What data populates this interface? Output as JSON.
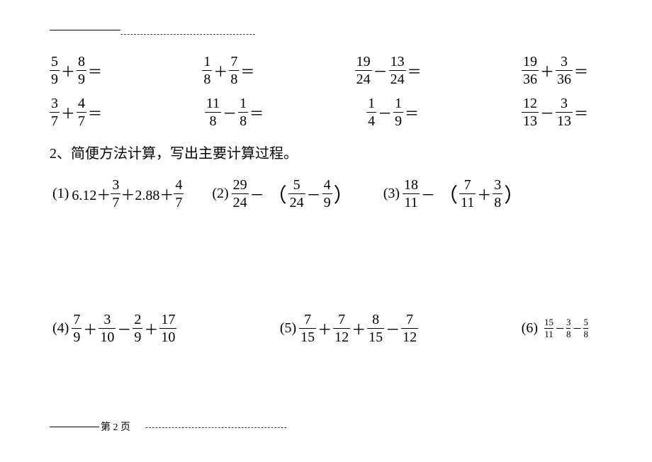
{
  "rules": {
    "dash_pattern": "-------------------------------------------",
    "bottom_label": "第 2 页"
  },
  "row1": [
    {
      "a_n": "5",
      "a_d": "9",
      "op": "＋",
      "b_n": "8",
      "b_d": "9"
    },
    {
      "a_n": "1",
      "a_d": "8",
      "op": "＋",
      "b_n": "7",
      "b_d": "8"
    },
    {
      "a_n": "19",
      "a_d": "24",
      "op": "－",
      "b_n": "13",
      "b_d": "24"
    },
    {
      "a_n": "19",
      "a_d": "36",
      "op": "＋",
      "b_n": "3",
      "b_d": "36"
    }
  ],
  "row2": [
    {
      "a_n": "3",
      "a_d": "7",
      "op": "＋",
      "b_n": "4",
      "b_d": "7"
    },
    {
      "a_n": "11",
      "a_d": "8",
      "op": "－",
      "b_n": "1",
      "b_d": "8"
    },
    {
      "a_n": "1",
      "a_d": "4",
      "op": "－",
      "b_n": "1",
      "b_d": "9"
    },
    {
      "a_n": "12",
      "a_d": "13",
      "op": "－",
      "b_n": "3",
      "b_d": "13"
    }
  ],
  "heading": "2、简便方法计算，写出主要计算过程。",
  "q1": {
    "label": "(1)",
    "lead": "6.12＋",
    "a_n": "3",
    "a_d": "7",
    "mid": "＋2.88＋",
    "b_n": "4",
    "b_d": "7"
  },
  "q2": {
    "label": "(2)",
    "a_n": "29",
    "a_d": "24",
    "minus": "－",
    "lp": "（",
    "b_n": "5",
    "b_d": "24",
    "op2": "－",
    "c_n": "4",
    "c_d": "9",
    "rp": "）"
  },
  "q3": {
    "label": "(3)",
    "a_n": "18",
    "a_d": "11",
    "minus": "－",
    "lp": "（",
    "b_n": "7",
    "b_d": "11",
    "op2": "＋",
    "c_n": "3",
    "c_d": "8",
    "rp": "）"
  },
  "q4": {
    "label": "(4)",
    "a_n": "7",
    "a_d": "9",
    "op1": "＋",
    "b_n": "3",
    "b_d": "10",
    "op2": "－",
    "c_n": "2",
    "c_d": "9",
    "op3": "＋",
    "d_n": "17",
    "d_d": "10"
  },
  "q5": {
    "label": "(5)",
    "a_n": "7",
    "a_d": "15",
    "op1": "＋",
    "b_n": "7",
    "b_d": "12",
    "op2": "＋",
    "c_n": "8",
    "c_d": "15",
    "op3": "－",
    "d_n": "7",
    "d_d": "12"
  },
  "q6": {
    "label": "(6)",
    "a_n": "15",
    "a_d": "11",
    "op1": "－",
    "b_n": "3",
    "b_d": "8",
    "op2": "－",
    "c_n": "5",
    "c_d": "8"
  }
}
